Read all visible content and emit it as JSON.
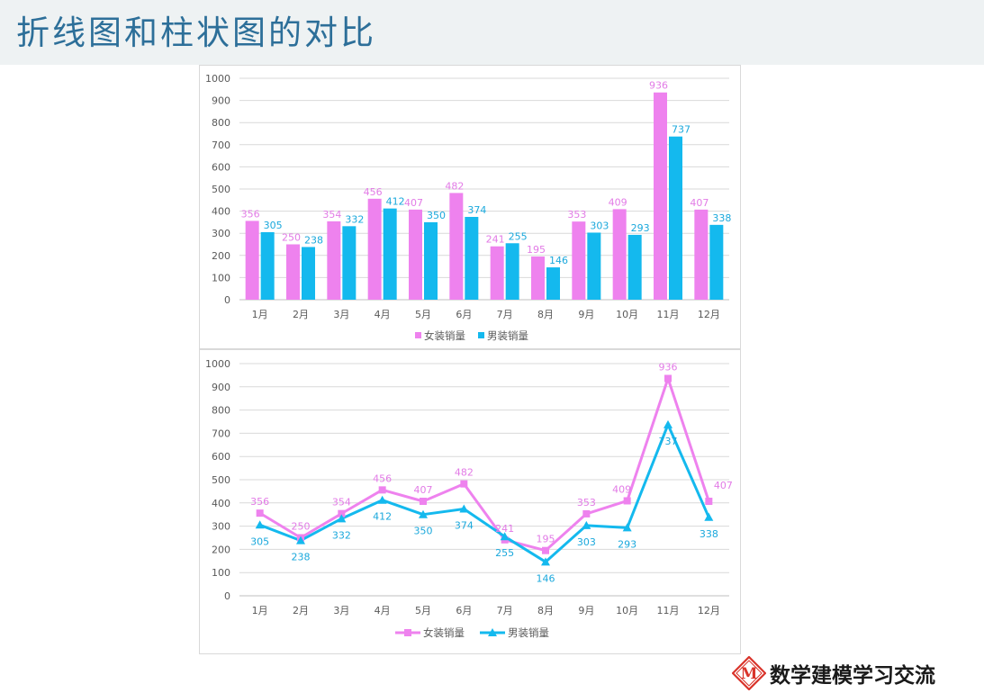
{
  "page": {
    "title": "折线图和柱状图的对比",
    "logo_text": "数学建模学习交流",
    "logo_letter": "M"
  },
  "colors": {
    "womens": "#ee82ee",
    "mens": "#14b9ee",
    "womens_label": "#e27be6",
    "mens_label": "#1aa8dc",
    "title": "#2d6f99",
    "title_band": "#eef2f3",
    "logo_red": "#d9342b"
  },
  "chart_data": [
    {
      "type": "bar",
      "categories": [
        "1月",
        "2月",
        "3月",
        "4月",
        "5月",
        "6月",
        "7月",
        "8月",
        "9月",
        "10月",
        "11月",
        "12月"
      ],
      "series": [
        {
          "name": "女装销量",
          "values": [
            356,
            250,
            354,
            456,
            407,
            482,
            241,
            195,
            353,
            409,
            936,
            407
          ]
        },
        {
          "name": "男装销量",
          "values": [
            305,
            238,
            332,
            412,
            350,
            374,
            255,
            146,
            303,
            293,
            737,
            338
          ]
        }
      ],
      "ylim": [
        0,
        1000
      ],
      "yticks": [
        0,
        100,
        200,
        300,
        400,
        500,
        600,
        700,
        800,
        900,
        1000
      ],
      "grid": true,
      "data_labels": true,
      "legend": "bottom-center"
    },
    {
      "type": "line",
      "categories": [
        "1月",
        "2月",
        "3月",
        "4月",
        "5月",
        "6月",
        "7月",
        "8月",
        "9月",
        "10月",
        "11月",
        "12月"
      ],
      "series": [
        {
          "name": "女装销量",
          "marker": "square",
          "values": [
            356,
            250,
            354,
            456,
            407,
            482,
            241,
            195,
            353,
            409,
            936,
            407
          ]
        },
        {
          "name": "男装销量",
          "marker": "triangle",
          "values": [
            305,
            238,
            332,
            412,
            350,
            374,
            255,
            146,
            303,
            293,
            737,
            338
          ]
        }
      ],
      "ylim": [
        0,
        1000
      ],
      "yticks": [
        0,
        100,
        200,
        300,
        400,
        500,
        600,
        700,
        800,
        900,
        1000
      ],
      "grid": true,
      "data_labels": true,
      "legend": "bottom-center"
    }
  ]
}
